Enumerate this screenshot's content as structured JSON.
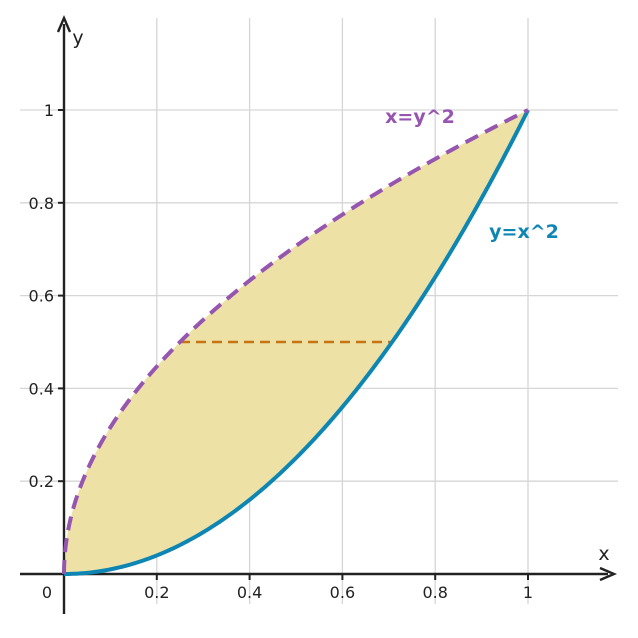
{
  "chart_data": {
    "type": "line",
    "title": "",
    "xlabel": "x",
    "ylabel": "y",
    "xlim": [
      -0.1,
      1.2
    ],
    "ylim": [
      -0.08,
      1.2
    ],
    "grid": true,
    "origin_label": "0",
    "x_ticks": [
      {
        "value": 0.2,
        "label": "0.2"
      },
      {
        "value": 0.4,
        "label": "0.4"
      },
      {
        "value": 0.6,
        "label": "0.6"
      },
      {
        "value": 0.8,
        "label": "0.8"
      },
      {
        "value": 1,
        "label": "1"
      }
    ],
    "y_ticks": [
      {
        "value": 0.2,
        "label": "0.2"
      },
      {
        "value": 0.4,
        "label": "0.4"
      },
      {
        "value": 0.6,
        "label": "0.6"
      },
      {
        "value": 0.8,
        "label": "0.8"
      },
      {
        "value": 1,
        "label": "1"
      }
    ],
    "series": [
      {
        "name": "y=x^2",
        "function": "y = x^2",
        "x_range": [
          0,
          1
        ],
        "style": "solid",
        "color": "#0e86b4"
      },
      {
        "name": "x=y^2",
        "function": "x = y^2",
        "y_range": [
          0,
          1
        ],
        "style": "dashed",
        "color": "#9656b0"
      }
    ],
    "shaded_region": {
      "between": [
        "x=y^2",
        "y=x^2"
      ],
      "x_range": [
        0,
        1
      ],
      "color": "#ede1a6"
    },
    "annotations": [
      {
        "type": "horizontal-segment",
        "y": 0.5,
        "x_from": 0.25,
        "x_to": 0.7071,
        "style": "dashed",
        "color": "#c87412"
      }
    ]
  }
}
